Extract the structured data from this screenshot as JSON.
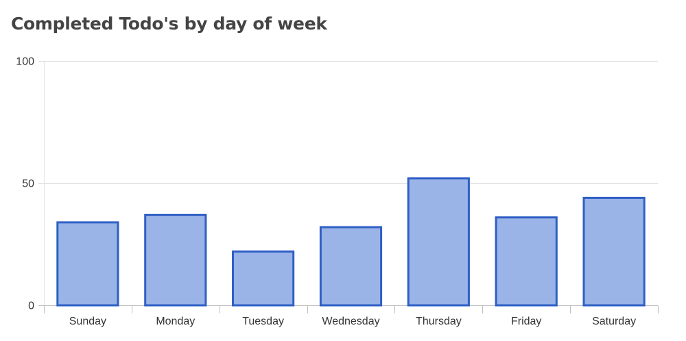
{
  "chart_data": {
    "type": "bar",
    "title": "Completed Todo's by day of week",
    "categories": [
      "Sunday",
      "Monday",
      "Tuesday",
      "Wednesday",
      "Thursday",
      "Friday",
      "Saturday"
    ],
    "values": [
      34,
      37,
      22,
      32,
      52,
      36,
      44
    ],
    "ylim": [
      0,
      100
    ],
    "yticks": [
      0,
      50,
      100
    ],
    "xlabel": "",
    "ylabel": "",
    "grid": true,
    "legend": "none",
    "colors": {
      "bar_fill": "#9ab4e8",
      "bar_stroke": "#2f5fc4",
      "title": "#444444"
    }
  }
}
